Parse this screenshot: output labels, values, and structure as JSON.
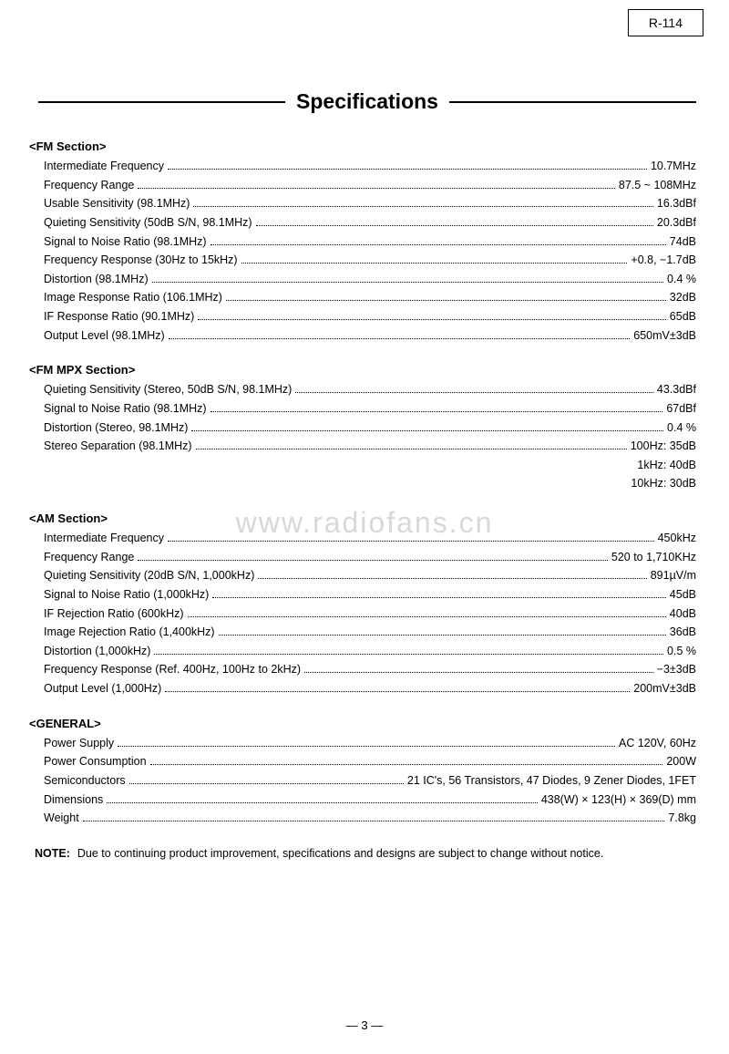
{
  "model": "R-114",
  "page_title": "Specifications",
  "watermark": "www.radiofans.cn",
  "page_number": "— 3 —",
  "note_label": "NOTE:",
  "note_text": "Due to continuing product improvement, specifications and designs are subject to change without notice.",
  "sections": [
    {
      "heading": "<FM Section>",
      "rows": [
        {
          "label": "Intermediate Frequency",
          "value": "10.7MHz"
        },
        {
          "label": "Frequency Range",
          "value": "87.5 ~ 108MHz"
        },
        {
          "label": "Usable Sensitivity (98.1MHz)",
          "value": "16.3dBf"
        },
        {
          "label": "Quieting Sensitivity (50dB S/N, 98.1MHz)",
          "value": "20.3dBf"
        },
        {
          "label": "Signal to Noise Ratio (98.1MHz)",
          "value": "74dB"
        },
        {
          "label": "Frequency Response (30Hz to 15kHz)",
          "value": "+0.8, −1.7dB"
        },
        {
          "label": "Distortion (98.1MHz)",
          "value": "0.4 %"
        },
        {
          "label": "Image Response Ratio (106.1MHz)",
          "value": "32dB"
        },
        {
          "label": "IF Response Ratio (90.1MHz)",
          "value": "65dB"
        },
        {
          "label": "Output Level (98.1MHz)",
          "value": "650mV±3dB"
        }
      ],
      "extras": []
    },
    {
      "heading": "<FM MPX Section>",
      "rows": [
        {
          "label": "Quieting Sensitivity (Stereo, 50dB S/N, 98.1MHz)",
          "value": "43.3dBf"
        },
        {
          "label": "Signal to Noise Ratio (98.1MHz)",
          "value": "67dBf"
        },
        {
          "label": "Distortion (Stereo, 98.1MHz)",
          "value": "0.4 %"
        },
        {
          "label": "Stereo Separation (98.1MHz)",
          "value": "100Hz: 35dB"
        }
      ],
      "extras": [
        "1kHz: 40dB",
        "10kHz: 30dB"
      ]
    },
    {
      "heading": "<AM Section>",
      "rows": [
        {
          "label": "Intermediate Frequency",
          "value": "450kHz"
        },
        {
          "label": "Frequency Range",
          "value": "520 to 1,710KHz"
        },
        {
          "label": "Quieting Sensitivity (20dB S/N, 1,000kHz)",
          "value": "891µV/m"
        },
        {
          "label": "Signal to Noise Ratio (1,000kHz)",
          "value": "45dB"
        },
        {
          "label": "IF Rejection Ratio (600kHz)",
          "value": "40dB"
        },
        {
          "label": "Image Rejection Ratio (1,400kHz)",
          "value": "36dB"
        },
        {
          "label": "Distortion (1,000kHz)",
          "value": "0.5 %"
        },
        {
          "label": "Frequency Response (Ref. 400Hz, 100Hz to 2kHz)",
          "value": "−3±3dB"
        },
        {
          "label": "Output Level (1,000Hz)",
          "value": "200mV±3dB"
        }
      ],
      "extras": []
    },
    {
      "heading": "<GENERAL>",
      "rows": [
        {
          "label": "Power Supply",
          "value": "AC 120V, 60Hz"
        },
        {
          "label": "Power Consumption",
          "value": "200W"
        },
        {
          "label": "Semiconductors",
          "value": "21 IC's, 56 Transistors, 47 Diodes, 9 Zener Diodes, 1FET"
        },
        {
          "label": "Dimensions",
          "value": "438(W) × 123(H) × 369(D) mm"
        },
        {
          "label": "Weight",
          "value": "7.8kg"
        }
      ],
      "extras": []
    }
  ]
}
